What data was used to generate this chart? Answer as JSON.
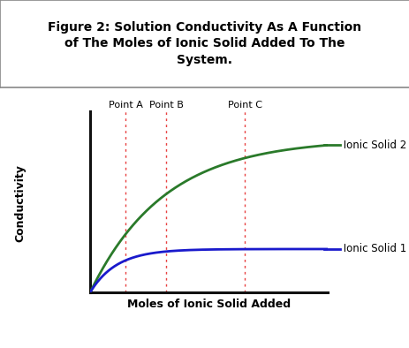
{
  "title": "Figure 2: Solution Conductivity As A Function\nof The Moles of Ionic Solid Added To The\nSystem.",
  "xlabel": "Moles of Ionic Solid Added",
  "ylabel": "Conductivity",
  "point_labels": [
    "Point A",
    "Point B",
    "Point C"
  ],
  "point_x": [
    0.15,
    0.32,
    0.65
  ],
  "label_ionic2": "Ionic Solid 2",
  "label_ionic1": "Ionic Solid 1",
  "color_ionic2": "#2a7a2a",
  "color_ionic1": "#1a1acc",
  "color_vline": "#e84040",
  "bg_color": "#ffffff",
  "xmin": 0.0,
  "xmax": 1.0,
  "ymin": 0.0,
  "ymax": 1.0,
  "ionic2_scale": 0.78,
  "ionic2_rate": 3.2,
  "ionic1_scale": 0.22,
  "ionic1_rate": 9.0
}
